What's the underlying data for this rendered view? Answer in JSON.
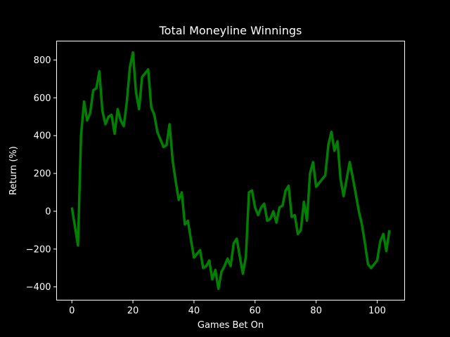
{
  "chart_data": {
    "type": "line",
    "title": "Total Moneyline Winnings",
    "xlabel": "Games Bet On",
    "ylabel": "Return (%)",
    "xlim": [
      -5,
      109
    ],
    "ylim": [
      -470,
      900
    ],
    "xticks": [
      0,
      20,
      40,
      60,
      80,
      100
    ],
    "yticks": [
      -400,
      -200,
      0,
      200,
      400,
      600,
      800
    ],
    "grid": false,
    "legend": "none",
    "background": "#000000",
    "axis_color": "#ffffff",
    "series": [
      {
        "color": "#008000",
        "x": [
          0,
          1,
          2,
          3,
          4,
          5,
          6,
          7,
          8,
          9,
          10,
          11,
          12,
          13,
          14,
          15,
          16,
          17,
          18,
          19,
          20,
          21,
          22,
          23,
          24,
          25,
          26,
          27,
          28,
          29,
          30,
          31,
          32,
          33,
          34,
          35,
          36,
          37,
          38,
          39,
          40,
          41,
          42,
          43,
          44,
          45,
          46,
          47,
          48,
          49,
          50,
          51,
          52,
          53,
          54,
          55,
          56,
          57,
          58,
          59,
          60,
          61,
          62,
          63,
          64,
          65,
          66,
          67,
          68,
          69,
          70,
          71,
          72,
          73,
          74,
          75,
          76,
          77,
          78,
          79,
          80,
          81,
          82,
          83,
          84,
          85,
          86,
          87,
          88,
          89,
          90,
          91,
          92,
          93,
          94,
          95,
          96,
          97,
          98,
          99,
          100,
          101,
          102,
          103,
          104
        ],
        "values": [
          20,
          -80,
          -180,
          400,
          580,
          480,
          520,
          640,
          650,
          740,
          530,
          460,
          500,
          510,
          410,
          540,
          480,
          450,
          580,
          760,
          840,
          630,
          540,
          710,
          730,
          750,
          550,
          510,
          420,
          380,
          340,
          350,
          460,
          270,
          160,
          60,
          100,
          -70,
          -50,
          -150,
          -245,
          -225,
          -205,
          -300,
          -290,
          -260,
          -360,
          -310,
          -410,
          -320,
          -290,
          -250,
          -290,
          -170,
          -145,
          -240,
          -330,
          -240,
          100,
          110,
          20,
          -20,
          20,
          40,
          -50,
          -40,
          0,
          -60,
          20,
          30,
          110,
          135,
          -30,
          -20,
          -120,
          -100,
          50,
          -50,
          200,
          260,
          130,
          150,
          170,
          190,
          350,
          420,
          320,
          370,
          170,
          80,
          170,
          260,
          180,
          90,
          0,
          -70,
          -170,
          -280,
          -300,
          -280,
          -260,
          -160,
          -120,
          -210,
          -100
        ]
      }
    ]
  }
}
